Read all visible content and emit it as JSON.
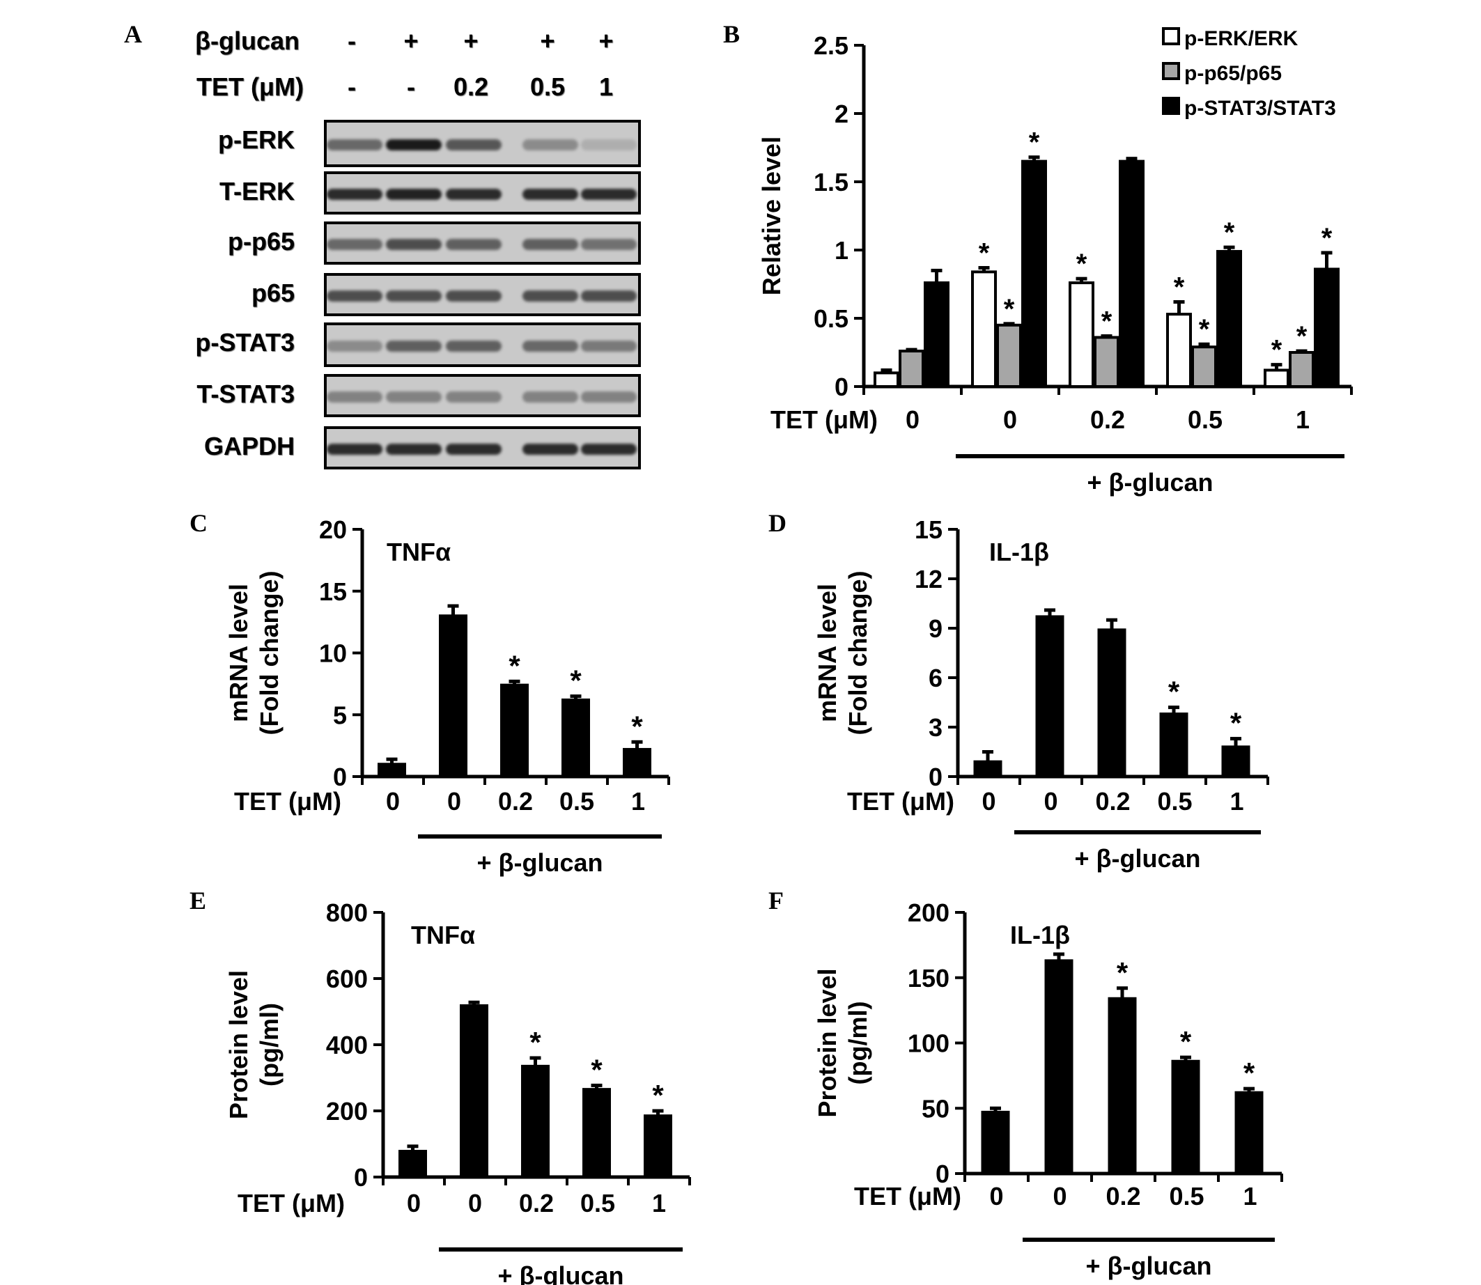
{
  "panel_letters": {
    "a": "A",
    "b": "B",
    "c": "C",
    "d": "D",
    "e": "E",
    "f": "F"
  },
  "blot": {
    "header_rows": [
      {
        "label": "β-glucan",
        "values": [
          "-",
          "+",
          "+",
          "+",
          "+"
        ]
      },
      {
        "label": "TET  (μM)",
        "values": [
          "-",
          "-",
          "0.2",
          "0.5",
          "1"
        ]
      }
    ],
    "rows": [
      {
        "label": "p-ERK",
        "intensities": [
          0.55,
          1.0,
          0.65,
          0.35,
          0.15
        ]
      },
      {
        "label": "T-ERK",
        "intensities": [
          0.9,
          0.95,
          0.9,
          0.9,
          0.9
        ]
      },
      {
        "label": "p-p65",
        "intensities": [
          0.55,
          0.7,
          0.6,
          0.6,
          0.5
        ]
      },
      {
        "label": "p65",
        "intensities": [
          0.7,
          0.7,
          0.7,
          0.7,
          0.7
        ]
      },
      {
        "label": "p-STAT3",
        "intensities": [
          0.35,
          0.6,
          0.6,
          0.55,
          0.45
        ]
      },
      {
        "label": "T-STAT3",
        "intensities": [
          0.4,
          0.4,
          0.4,
          0.4,
          0.4
        ]
      },
      {
        "label": "GAPDH",
        "intensities": [
          0.9,
          0.9,
          0.9,
          0.9,
          0.9
        ]
      }
    ],
    "band_color": "#1a1a1a",
    "background_color": "#c9c9c9"
  },
  "chart_data": [
    {
      "id": "B",
      "type": "bar",
      "ylabel": "Relative level",
      "ylim": [
        0,
        2.5
      ],
      "yticks": [
        0,
        0.5,
        1,
        1.5,
        2,
        2.5
      ],
      "ytick_labels": [
        "0",
        "0.5",
        "1",
        "1.5",
        "2",
        "2.5"
      ],
      "xlabel_prefix": "TET (μM)",
      "categories": [
        "0",
        "0",
        "0.2",
        "0.5",
        "1"
      ],
      "treatment_label": "+ β-glucan",
      "legend_position": "top-right",
      "series": [
        {
          "name": "p-ERK/ERK",
          "color": "#ffffff",
          "values": [
            0.1,
            0.84,
            0.76,
            0.53,
            0.12
          ],
          "errors": [
            0.02,
            0.03,
            0.03,
            0.09,
            0.04
          ],
          "stars": [
            false,
            true,
            true,
            true,
            true
          ]
        },
        {
          "name": "p-p65/p65",
          "color": "#a6a6a6",
          "values": [
            0.26,
            0.45,
            0.36,
            0.29,
            0.25
          ],
          "errors": [
            0.01,
            0.01,
            0.01,
            0.02,
            0.01
          ],
          "stars": [
            false,
            true,
            true,
            true,
            true
          ]
        },
        {
          "name": "p-STAT3/STAT3",
          "color": "#000000",
          "values": [
            0.76,
            1.65,
            1.65,
            0.99,
            0.86
          ],
          "errors": [
            0.09,
            0.03,
            0.02,
            0.03,
            0.12
          ],
          "stars": [
            false,
            true,
            false,
            true,
            true
          ]
        }
      ]
    },
    {
      "id": "C",
      "type": "bar",
      "title": "TNFα",
      "ylabel_lines": [
        "mRNA level",
        "(Fold change)"
      ],
      "ylim": [
        0,
        20
      ],
      "yticks": [
        0,
        5,
        10,
        15,
        20
      ],
      "ytick_labels": [
        "0",
        "5",
        "10",
        "15",
        "20"
      ],
      "xlabel_prefix": "TET (μM)",
      "categories": [
        "0",
        "0",
        "0.2",
        "0.5",
        "1"
      ],
      "treatment_label": "+ β-glucan",
      "values": [
        1.0,
        13.0,
        7.4,
        6.2,
        2.2
      ],
      "errors": [
        0.4,
        0.8,
        0.3,
        0.3,
        0.6
      ],
      "stars": [
        false,
        false,
        true,
        true,
        true
      ]
    },
    {
      "id": "D",
      "type": "bar",
      "title": "IL-1β",
      "ylabel_lines": [
        "mRNA level",
        "(Fold change)"
      ],
      "ylim": [
        0,
        15
      ],
      "yticks": [
        0,
        3,
        6,
        9,
        12,
        15
      ],
      "ytick_labels": [
        "0",
        "3",
        "6",
        "9",
        "12",
        "15"
      ],
      "xlabel_prefix": "TET (μM)",
      "categories": [
        "0",
        "0",
        "0.2",
        "0.5",
        "1"
      ],
      "treatment_label": "+ β-glucan",
      "values": [
        0.9,
        9.7,
        8.9,
        3.8,
        1.8
      ],
      "errors": [
        0.6,
        0.4,
        0.6,
        0.4,
        0.5
      ],
      "stars": [
        false,
        false,
        false,
        true,
        true
      ]
    },
    {
      "id": "E",
      "type": "bar",
      "title": "TNFα",
      "ylabel_lines": [
        "Protein level",
        "(pg/ml)"
      ],
      "ylim": [
        0,
        800
      ],
      "yticks": [
        0,
        200,
        400,
        600,
        800
      ],
      "ytick_labels": [
        "0",
        "200",
        "400",
        "600",
        "800"
      ],
      "xlabel_prefix": "TET (μM)",
      "categories": [
        "0",
        "0",
        "0.2",
        "0.5",
        "1"
      ],
      "treatment_label": "+ β-glucan",
      "values": [
        78,
        518,
        335,
        265,
        185
      ],
      "errors": [
        15,
        10,
        25,
        12,
        15
      ],
      "stars": [
        false,
        false,
        true,
        true,
        true
      ]
    },
    {
      "id": "F",
      "type": "bar",
      "title": "IL-1β",
      "ylabel_lines": [
        "Protein level",
        "(pg/ml)"
      ],
      "ylim": [
        0,
        200
      ],
      "yticks": [
        0,
        50,
        100,
        150,
        200
      ],
      "ytick_labels": [
        "0",
        "50",
        "100",
        "150",
        "200"
      ],
      "xlabel_prefix": "TET (μM)",
      "categories": [
        "0",
        "0",
        "0.2",
        "0.5",
        "1"
      ],
      "treatment_label": "+ β-glucan",
      "values": [
        47,
        163,
        134,
        86,
        62
      ],
      "errors": [
        3,
        5,
        8,
        3,
        3
      ],
      "stars": [
        false,
        false,
        true,
        true,
        true
      ]
    }
  ]
}
